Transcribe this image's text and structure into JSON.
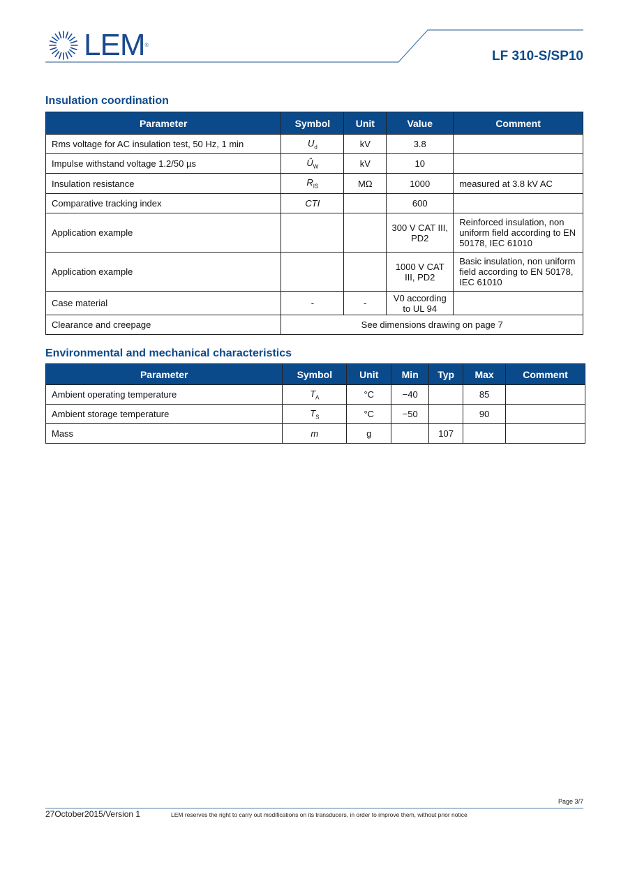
{
  "header": {
    "logo_text": "LEM",
    "product": "LF 310-S/SP10",
    "brand_color": "#1b4a8e"
  },
  "insulation": {
    "title": "Insulation coordination",
    "columns": [
      "Parameter",
      "Symbol",
      "Unit",
      "Value",
      "Comment"
    ],
    "rows": [
      {
        "param": "Rms voltage for AC insulation test, 50 Hz, 1 min",
        "sym": "U",
        "sub": "d",
        "unit": "kV",
        "value": "3.8",
        "comment": ""
      },
      {
        "param": "Impulse withstand voltage 1.2/50 µs",
        "sym": "Û",
        "sub": "W",
        "unit": "kV",
        "value": "10",
        "comment": ""
      },
      {
        "param": "Insulation resistance",
        "sym": "R",
        "sub": "IS",
        "unit": "MΩ",
        "value": "1000",
        "comment": "measured at 3.8 kV AC"
      },
      {
        "param": "Comparative tracking index",
        "sym": "CTI",
        "sub": "",
        "unit": "",
        "value": "600",
        "comment": ""
      },
      {
        "param": "Application example",
        "sym": "",
        "sub": "",
        "unit": "",
        "value": "300 V CAT III, PD2",
        "comment": "Reinforced insulation, non uniform field according to EN 50178, IEC 61010"
      },
      {
        "param": "Application example",
        "sym": "",
        "sub": "",
        "unit": "",
        "value": "1000 V CAT III, PD2",
        "comment": "Basic insulation, non uniform field according to EN 50178, IEC 61010"
      },
      {
        "param": "Case material",
        "sym": "-",
        "sub": "",
        "unit": "-",
        "value": "V0 according to UL 94",
        "comment": ""
      }
    ],
    "clearance": {
      "param": "Clearance and creepage",
      "text": "See dimensions drawing on page 7"
    }
  },
  "environment": {
    "title": "Environmental and mechanical characteristics",
    "columns": [
      "Parameter",
      "Symbol",
      "Unit",
      "Min",
      "Typ",
      "Max",
      "Comment"
    ],
    "rows": [
      {
        "param": "Ambient operating temperature",
        "sym": "T",
        "sub": "A",
        "unit": "°C",
        "min": "−40",
        "typ": "",
        "max": "85",
        "comment": ""
      },
      {
        "param": "Ambient storage temperature",
        "sym": "T",
        "sub": "S",
        "unit": "°C",
        "min": "−50",
        "typ": "",
        "max": "90",
        "comment": ""
      },
      {
        "param": "Mass",
        "sym": "m",
        "sub": "",
        "unit": "g",
        "min": "",
        "typ": "107",
        "max": "",
        "comment": ""
      }
    ]
  },
  "footer": {
    "page": "Page 3/7",
    "date": "27October2015/Version 1",
    "note": "LEM reserves the right to carry out modifications on its transducers, in order to improve them, without prior notice"
  }
}
